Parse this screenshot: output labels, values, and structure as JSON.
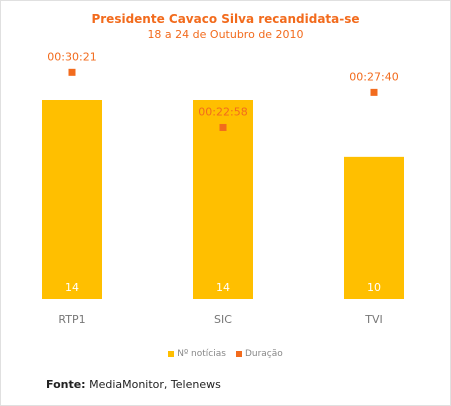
{
  "colors": {
    "bar": "#ffbf00",
    "marker": "#f26b1d",
    "title": "#f26b1d"
  },
  "source": {
    "label": "Fonte:",
    "text": " MediaMonitor, Telenews"
  },
  "chart_data": {
    "type": "bar",
    "title": "Presidente Cavaco Silva recandidata-se",
    "subtitle": "18 a 24 de Outubro de 2010",
    "categories": [
      "RTP1",
      "SIC",
      "TVI"
    ],
    "series": [
      {
        "name": "Nº notícias",
        "type": "bar",
        "values": [
          14,
          14,
          10
        ],
        "data_labels": [
          "14",
          "14",
          "10"
        ]
      },
      {
        "name": "Duração",
        "type": "marker",
        "values": [
          "00:30:21",
          "00:22:58",
          "00:27:40"
        ],
        "data_labels": [
          "00:30:21",
          "00:22:58",
          "00:27:40"
        ]
      }
    ],
    "ylim_bars": [
      0,
      14
    ],
    "ylim_duration": [
      "00:00:00",
      "00:32:00"
    ],
    "grid": false,
    "legend_position": "bottom"
  }
}
